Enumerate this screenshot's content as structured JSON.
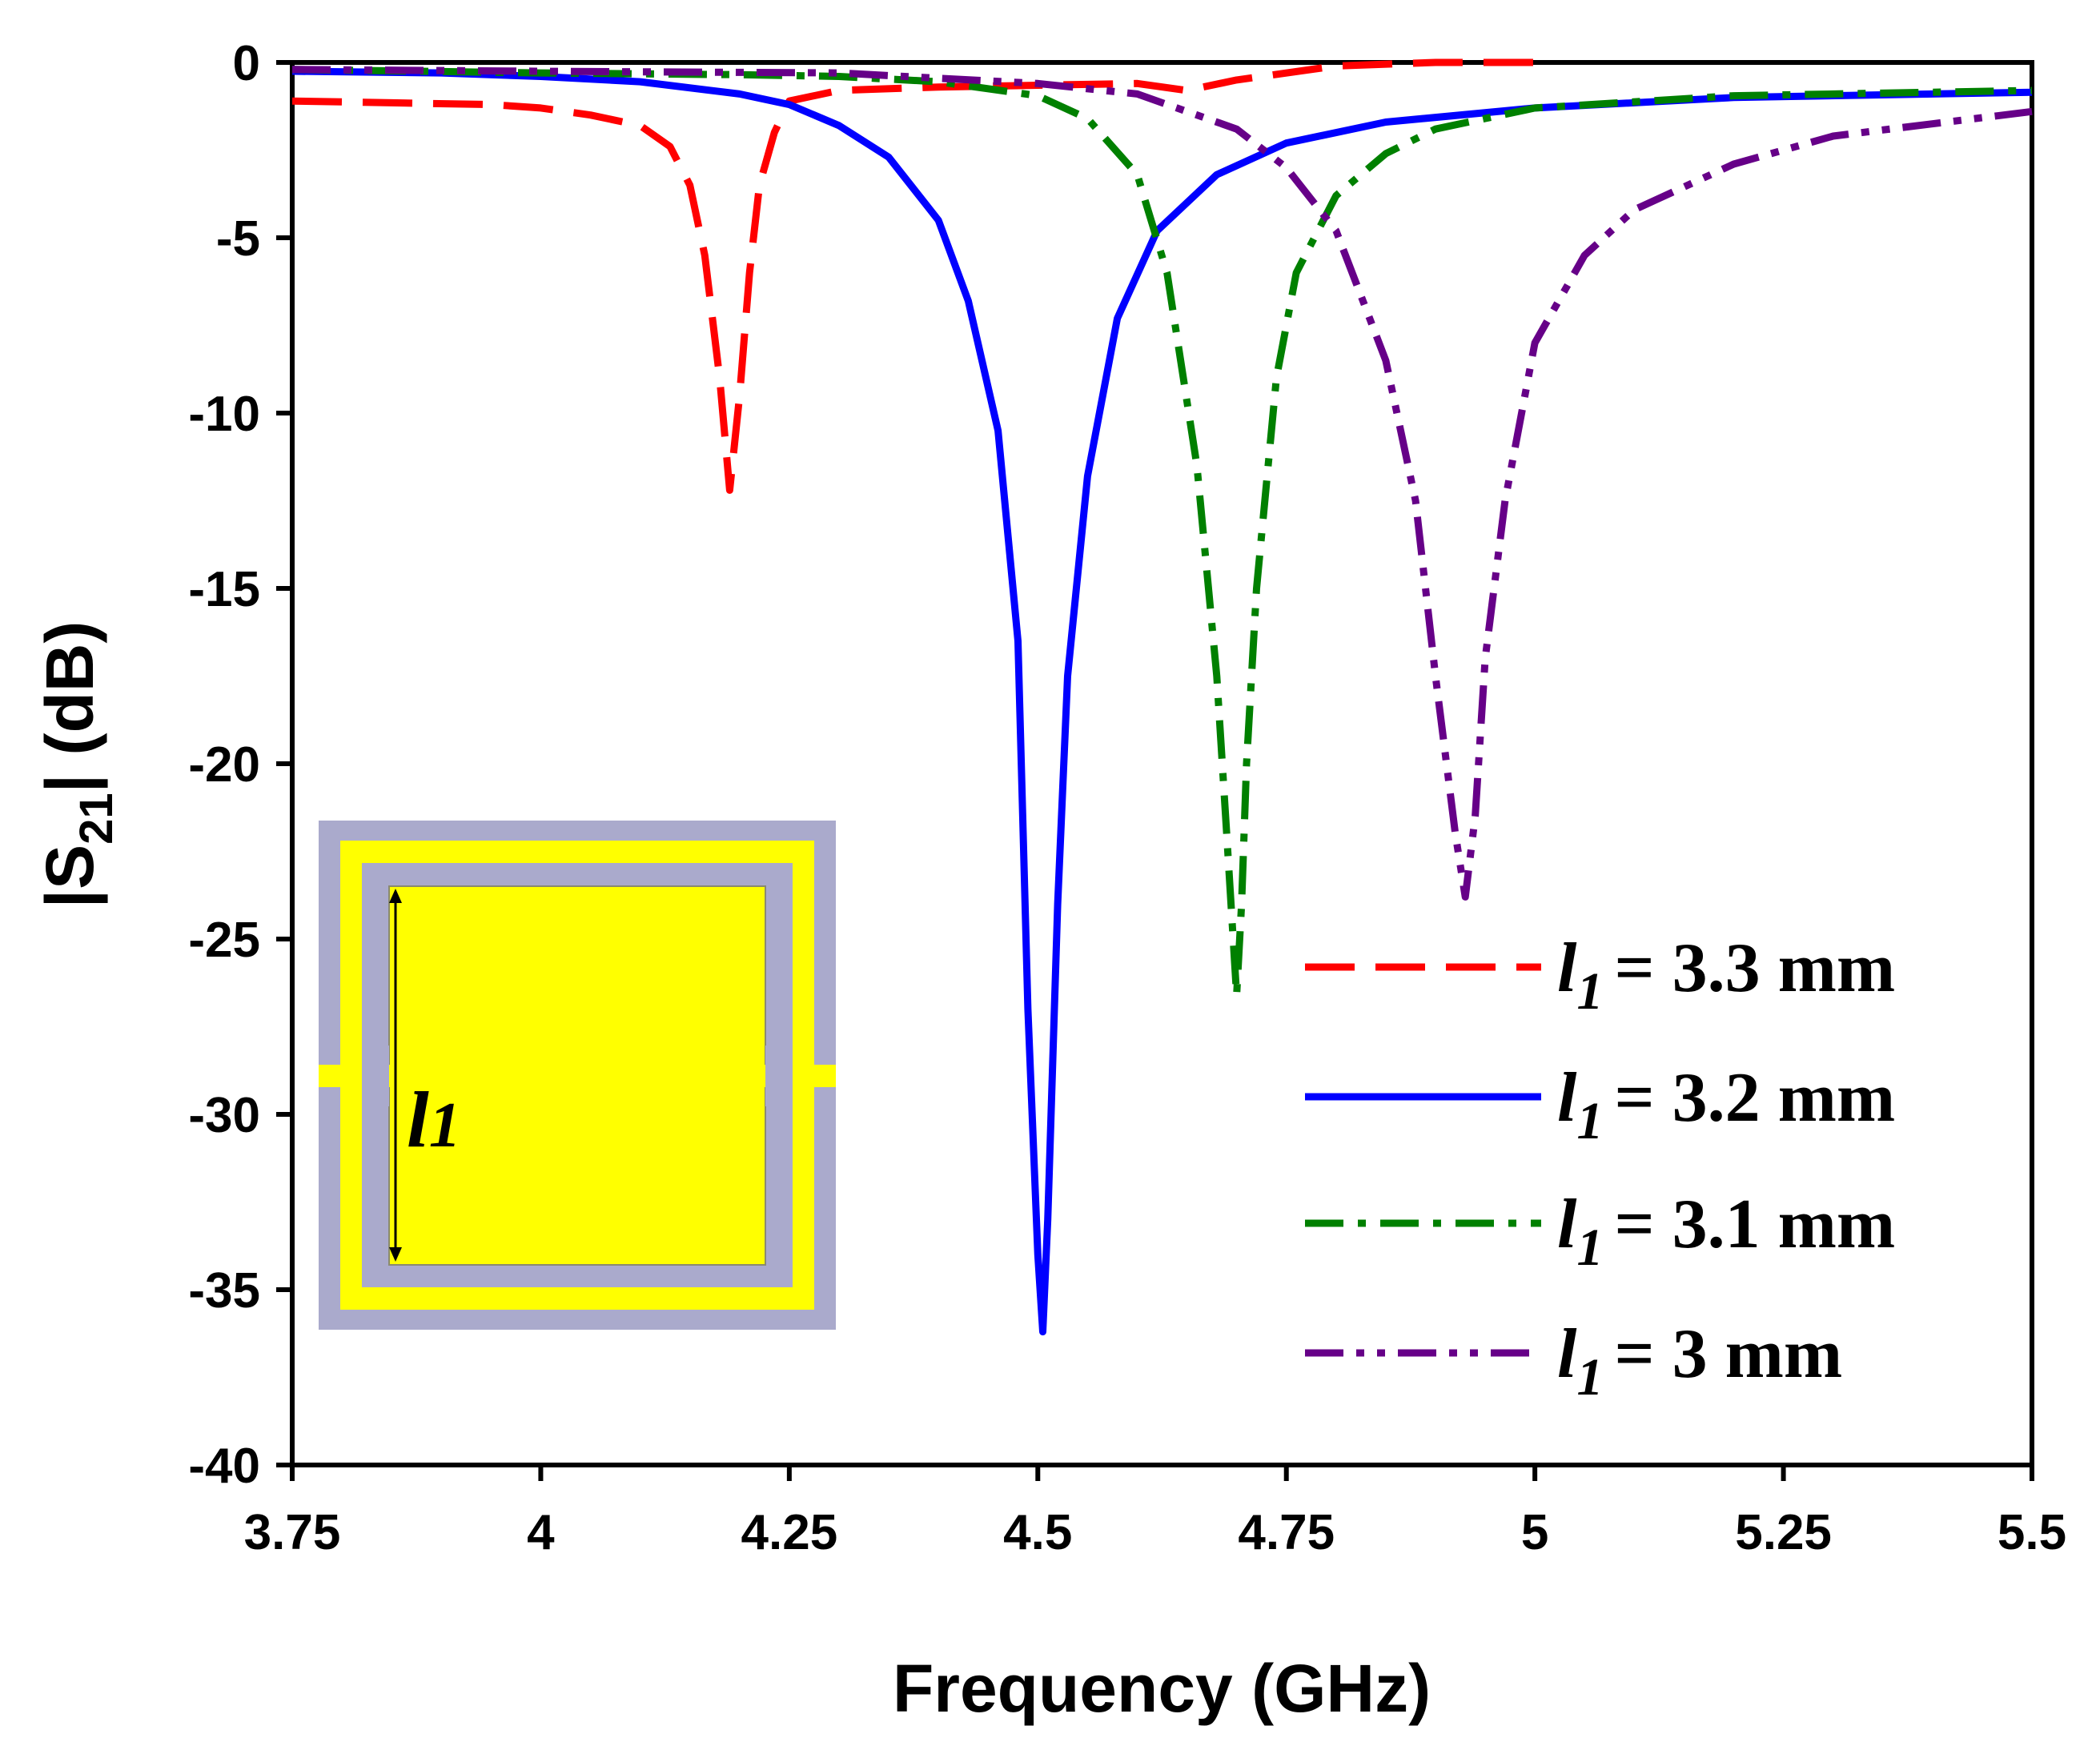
{
  "chart_data": {
    "type": "line",
    "title": "",
    "xlabel": "Frequency (GHz)",
    "ylabel": {
      "prefix": "|S",
      "sub": "21",
      "suffix": "| (dB)"
    },
    "xlim": [
      3.75,
      5.5
    ],
    "ylim": [
      -40,
      0
    ],
    "grid": false,
    "legend_position": "right",
    "xticks": [
      {
        "value": 3.75,
        "label": "3.75"
      },
      {
        "value": 4.0,
        "label": "4"
      },
      {
        "value": 4.25,
        "label": "4.25"
      },
      {
        "value": 4.5,
        "label": "4.5"
      },
      {
        "value": 4.75,
        "label": "4.75"
      },
      {
        "value": 5.0,
        "label": "5"
      },
      {
        "value": 5.25,
        "label": "5.25"
      },
      {
        "value": 5.5,
        "label": "5.5"
      }
    ],
    "yticks": [
      {
        "value": 0,
        "label": "0"
      },
      {
        "value": -5,
        "label": "-5"
      },
      {
        "value": -10,
        "label": "-10"
      },
      {
        "value": -15,
        "label": "-15"
      },
      {
        "value": -20,
        "label": "-20"
      },
      {
        "value": -25,
        "label": "-25"
      },
      {
        "value": -30,
        "label": "-30"
      },
      {
        "value": -35,
        "label": "-35"
      },
      {
        "value": -40,
        "label": "-40"
      }
    ],
    "series": [
      {
        "name": "l1 = 3.3 mm",
        "var": "l",
        "sub": "1",
        "value": "= 3.3 mm",
        "color": "#ff0000",
        "style": "dash",
        "x": [
          3.75,
          3.85,
          3.95,
          4.0,
          4.05,
          4.1,
          4.13,
          4.15,
          4.165,
          4.18,
          4.19,
          4.2,
          4.21,
          4.22,
          4.235,
          4.25,
          4.3,
          4.4,
          4.5,
          4.6,
          4.65,
          4.7,
          4.8,
          4.9,
          5.0
        ],
        "y": [
          -1.1,
          -1.15,
          -1.2,
          -1.3,
          -1.5,
          -1.8,
          -2.4,
          -3.5,
          -5.5,
          -9.0,
          -12.2,
          -9.5,
          -6.0,
          -3.5,
          -2.0,
          -1.1,
          -0.8,
          -0.7,
          -0.65,
          -0.6,
          -0.8,
          -0.5,
          -0.1,
          0.0,
          0.0
        ]
      },
      {
        "name": "l1 = 3.2 mm",
        "var": "l",
        "sub": "1",
        "value": "= 3.2 mm",
        "color": "#0000ff",
        "style": "solid",
        "x": [
          3.75,
          3.9,
          4.0,
          4.1,
          4.2,
          4.25,
          4.3,
          4.35,
          4.4,
          4.43,
          4.46,
          4.48,
          4.49,
          4.5,
          4.505,
          4.51,
          4.52,
          4.53,
          4.55,
          4.58,
          4.62,
          4.68,
          4.75,
          4.85,
          5.0,
          5.2,
          5.5
        ],
        "y": [
          -0.25,
          -0.3,
          -0.4,
          -0.55,
          -0.9,
          -1.2,
          -1.8,
          -2.7,
          -4.5,
          -6.8,
          -10.5,
          -16.5,
          -27.0,
          -34.0,
          -36.2,
          -33.0,
          -24.0,
          -17.5,
          -11.8,
          -7.3,
          -4.8,
          -3.2,
          -2.3,
          -1.7,
          -1.3,
          -1.0,
          -0.85
        ]
      },
      {
        "name": "l1 = 3.1 mm",
        "var": "l",
        "sub": "1",
        "value": "= 3.1 mm",
        "color": "#008000",
        "style": "dashdot",
        "x": [
          3.75,
          4.0,
          4.2,
          4.3,
          4.4,
          4.5,
          4.55,
          4.6,
          4.63,
          4.66,
          4.68,
          4.69,
          4.7,
          4.705,
          4.71,
          4.72,
          4.74,
          4.76,
          4.8,
          4.85,
          4.9,
          5.0,
          5.2,
          5.5
        ],
        "y": [
          -0.2,
          -0.3,
          -0.35,
          -0.4,
          -0.55,
          -0.95,
          -1.6,
          -3.2,
          -6.0,
          -11.5,
          -17.5,
          -22.0,
          -26.6,
          -24.0,
          -20.0,
          -15.0,
          -9.0,
          -6.0,
          -3.8,
          -2.6,
          -1.9,
          -1.3,
          -0.95,
          -0.8
        ]
      },
      {
        "name": "l1 = 3 mm",
        "var": "l",
        "sub": "1",
        "value": "= 3 mm",
        "color": "#660088",
        "style": "dashdotdot",
        "x": [
          3.75,
          4.0,
          4.3,
          4.5,
          4.6,
          4.7,
          4.75,
          4.8,
          4.85,
          4.88,
          4.9,
          4.92,
          4.93,
          4.94,
          4.95,
          4.97,
          5.0,
          5.05,
          5.1,
          5.2,
          5.3,
          5.5
        ],
        "y": [
          -0.2,
          -0.25,
          -0.3,
          -0.6,
          -0.9,
          -1.9,
          -3.0,
          -4.8,
          -8.5,
          -12.5,
          -17.5,
          -22.0,
          -23.8,
          -21.5,
          -17.0,
          -12.5,
          -8.0,
          -5.5,
          -4.2,
          -2.9,
          -2.1,
          -1.4
        ]
      }
    ],
    "inset": {
      "label_var": "l",
      "label_sub": "1"
    }
  }
}
